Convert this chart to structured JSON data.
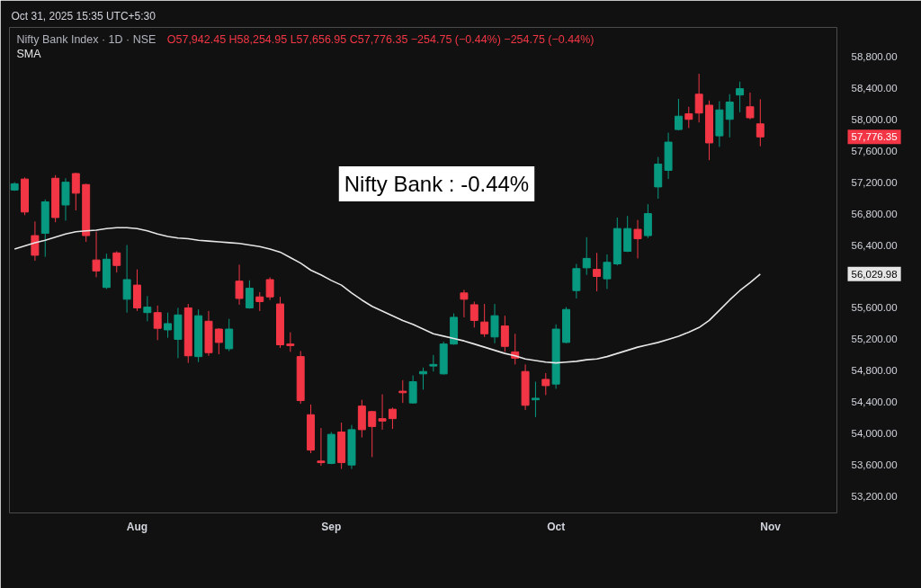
{
  "chart_data": {
    "type": "candlestick",
    "title": "Nifty Bank Index · 1D · NSE",
    "subtitle": "O57,942.45 H58,254.95 L57,656.95 C57,776.35 −254.75 (−0.44%) −254.75 (−0.44%)",
    "categories": [
      null,
      null,
      null,
      null,
      null,
      null,
      null,
      null,
      null,
      null,
      null,
      null,
      "Aug",
      null,
      null,
      null,
      null,
      null,
      null,
      null,
      null,
      null,
      null,
      null,
      null,
      null,
      null,
      null,
      null,
      null,
      null,
      "Sep",
      null,
      null,
      null,
      null,
      null,
      null,
      null,
      null,
      null,
      null,
      null,
      null,
      null,
      null,
      null,
      null,
      null,
      null,
      null,
      null,
      null,
      "Oct",
      null,
      null,
      null,
      null,
      null,
      null,
      null,
      null,
      null,
      null,
      null,
      null,
      null,
      null,
      null,
      null,
      null,
      null,
      null,
      null,
      "Nov",
      null,
      null,
      null,
      null,
      null,
      null
    ],
    "ohlc": [
      [
        57100,
        57200,
        57090,
        57180
      ],
      [
        57240,
        57260,
        56780,
        56820
      ],
      [
        56520,
        56700,
        56200,
        56270
      ],
      [
        56550,
        56980,
        56250,
        56950
      ],
      [
        57250,
        57290,
        56690,
        56750
      ],
      [
        56910,
        57250,
        56710,
        57200
      ],
      [
        57310,
        57320,
        56840,
        57060
      ],
      [
        57170,
        57180,
        56440,
        56520
      ],
      [
        56210,
        56570,
        55990,
        56070
      ],
      [
        55860,
        56290,
        55840,
        56220
      ],
      [
        56300,
        56320,
        56050,
        56140
      ],
      [
        55710,
        56400,
        55540,
        55960
      ],
      [
        55890,
        56090,
        55560,
        55600
      ],
      [
        55540,
        55750,
        55430,
        55610
      ],
      [
        55540,
        55630,
        55190,
        55340
      ],
      [
        55320,
        55540,
        55220,
        55400
      ],
      [
        55200,
        55600,
        54960,
        55510
      ],
      [
        55600,
        55650,
        54900,
        54990
      ],
      [
        54980,
        55580,
        54910,
        55500
      ],
      [
        55430,
        55560,
        54990,
        55030
      ],
      [
        55330,
        55340,
        55010,
        55160
      ],
      [
        55080,
        55460,
        55050,
        55330
      ],
      [
        55940,
        56150,
        55640,
        55720
      ],
      [
        55600,
        55950,
        55590,
        55850
      ],
      [
        55740,
        55800,
        55560,
        55680
      ],
      [
        55960,
        55990,
        55700,
        55740
      ],
      [
        55650,
        55740,
        55090,
        55130
      ],
      [
        55140,
        55290,
        55040,
        55120
      ],
      [
        54980,
        55050,
        54380,
        54420
      ],
      [
        54240,
        54370,
        53750,
        53790
      ],
      [
        53650,
        54070,
        53590,
        53630
      ],
      [
        53620,
        54020,
        53610,
        53990
      ],
      [
        54020,
        54140,
        53550,
        53630
      ],
      [
        53600,
        54110,
        53550,
        54050
      ],
      [
        54350,
        54430,
        53950,
        54050
      ],
      [
        54280,
        54290,
        53700,
        54090
      ],
      [
        54190,
        54500,
        54050,
        54160
      ],
      [
        54310,
        54330,
        54060,
        54190
      ],
      [
        54540,
        54680,
        54390,
        54520
      ],
      [
        54390,
        54740,
        54380,
        54660
      ],
      [
        54760,
        54840,
        54560,
        54790
      ],
      [
        54860,
        55000,
        54790,
        54880
      ],
      [
        54760,
        55170,
        54750,
        55140
      ],
      [
        55140,
        55530,
        55130,
        55480
      ],
      [
        55790,
        55830,
        55480,
        55710
      ],
      [
        55640,
        55680,
        55350,
        55440
      ],
      [
        55420,
        55650,
        55230,
        55270
      ],
      [
        55230,
        55650,
        55150,
        55500
      ],
      [
        55370,
        55500,
        55040,
        55110
      ],
      [
        55040,
        55270,
        54880,
        54960
      ],
      [
        54790,
        54880,
        54300,
        54360
      ],
      [
        54430,
        54660,
        54210,
        54450
      ],
      [
        54690,
        54770,
        54490,
        54610
      ],
      [
        54630,
        55390,
        54570,
        55330
      ],
      [
        55160,
        55610,
        55150,
        55580
      ],
      [
        55820,
        56160,
        55720,
        56100
      ],
      [
        56110,
        56500,
        56020,
        56230
      ],
      [
        56090,
        56300,
        55810,
        56000
      ],
      [
        55970,
        56280,
        55840,
        56180
      ],
      [
        56160,
        56750,
        56140,
        56610
      ],
      [
        56320,
        56770,
        56310,
        56610
      ],
      [
        56600,
        56720,
        56230,
        56480
      ],
      [
        56520,
        56920,
        56490,
        56800
      ],
      [
        57140,
        57520,
        56990,
        57430
      ],
      [
        57350,
        57830,
        57240,
        57710
      ],
      [
        57870,
        58260,
        57860,
        58040
      ],
      [
        58070,
        58160,
        57890,
        58000
      ],
      [
        58320,
        58580,
        57960,
        58080
      ],
      [
        58180,
        58240,
        57480,
        57700
      ],
      [
        57790,
        58230,
        57650,
        58120
      ],
      [
        58000,
        58320,
        57770,
        58220
      ],
      [
        58310,
        58480,
        58090,
        58390
      ],
      [
        58160,
        58340,
        58000,
        58020
      ],
      [
        57942.45,
        58254.95,
        57656.95,
        57776.35
      ],
      null,
      null,
      null,
      null,
      null,
      null,
      null
    ],
    "colors": [
      "#089981",
      "#f23645",
      "#f23645",
      "#089981",
      "#f23645",
      "#089981",
      "#f23645",
      "#f23645",
      "#f23645",
      "#089981",
      "#f23645",
      "#089981",
      "#f23645",
      "#089981",
      "#f23645",
      "#089981",
      "#089981",
      "#f23645",
      "#089981",
      "#f23645",
      "#f23645",
      "#089981",
      "#f23645",
      "#089981",
      "#f23645",
      "#f23645",
      "#f23645",
      "#f23645",
      "#f23645",
      "#f23645",
      "#f23645",
      "#089981",
      "#f23645",
      "#089981",
      "#f23645",
      "#f23645",
      "#f23645",
      "#f23645",
      "#f23645",
      "#089981",
      "#089981",
      "#089981",
      "#089981",
      "#089981",
      "#f23645",
      "#f23645",
      "#f23645",
      "#089981",
      "#f23645",
      "#f23645",
      "#f23645",
      "#089981",
      "#f23645",
      "#089981",
      "#089981",
      "#089981",
      "#089981",
      "#f23645",
      "#089981",
      "#089981",
      "#089981",
      "#f23645",
      "#089981",
      "#089981",
      "#089981",
      "#089981",
      "#f23645",
      "#f23645",
      "#f23645",
      "#089981",
      "#089981",
      "#089981",
      "#f23645",
      "#f23645",
      null,
      null,
      null,
      null,
      null,
      null,
      null
    ],
    "series": [
      {
        "name": "SMA",
        "type": "line",
        "color": "#e6e6e6",
        "values": [
          56350,
          56390,
          56430,
          56460,
          56500,
          56540,
          56570,
          56580,
          56590,
          56610,
          56620,
          56620,
          56610,
          56580,
          56540,
          56510,
          56490,
          56480,
          56460,
          56450,
          56440,
          56430,
          56420,
          56400,
          56380,
          56350,
          56310,
          56240,
          56170,
          56080,
          56020,
          55950,
          55890,
          55790,
          55700,
          55620,
          55560,
          55500,
          55440,
          55390,
          55330,
          55270,
          55240,
          55210,
          55180,
          55140,
          55100,
          55060,
          55020,
          54990,
          54950,
          54930,
          54910,
          54900,
          54910,
          54920,
          54940,
          54950,
          54980,
          55020,
          55060,
          55100,
          55130,
          55160,
          55200,
          55240,
          55290,
          55350,
          55440,
          55570,
          55700,
          55820,
          55920,
          56029.98,
          null,
          null,
          null,
          null,
          null,
          null,
          null
        ]
      }
    ],
    "ylim": [
      52990,
      59170
    ],
    "yticks": [
      {
        "value": 53200,
        "label": "53,200.00"
      },
      {
        "value": 53600,
        "label": "53,600.00"
      },
      {
        "value": 54000,
        "label": "54,000.00"
      },
      {
        "value": 54400,
        "label": "54,400.00"
      },
      {
        "value": 54800,
        "label": "54,800.00"
      },
      {
        "value": 55200,
        "label": "55,200.00"
      },
      {
        "value": 55600,
        "label": "55,600.00"
      },
      {
        "value": 56400,
        "label": "56,400.00"
      },
      {
        "value": 56800,
        "label": "56,800.00"
      },
      {
        "value": 57200,
        "label": "57,200.00"
      },
      {
        "value": 57600,
        "label": "57,600.00"
      },
      {
        "value": 58000,
        "label": "58,000.00"
      },
      {
        "value": 58400,
        "label": "58,400.00"
      },
      {
        "value": 58800,
        "label": "58,800.00"
      }
    ],
    "grid": false,
    "legend": "top left",
    "annotations": [
      "Oct 31, 2025 15:35 UTC+5:30",
      "Nifty Bank : -0.44%",
      "57,776.35",
      "56,029.98"
    ]
  }
}
